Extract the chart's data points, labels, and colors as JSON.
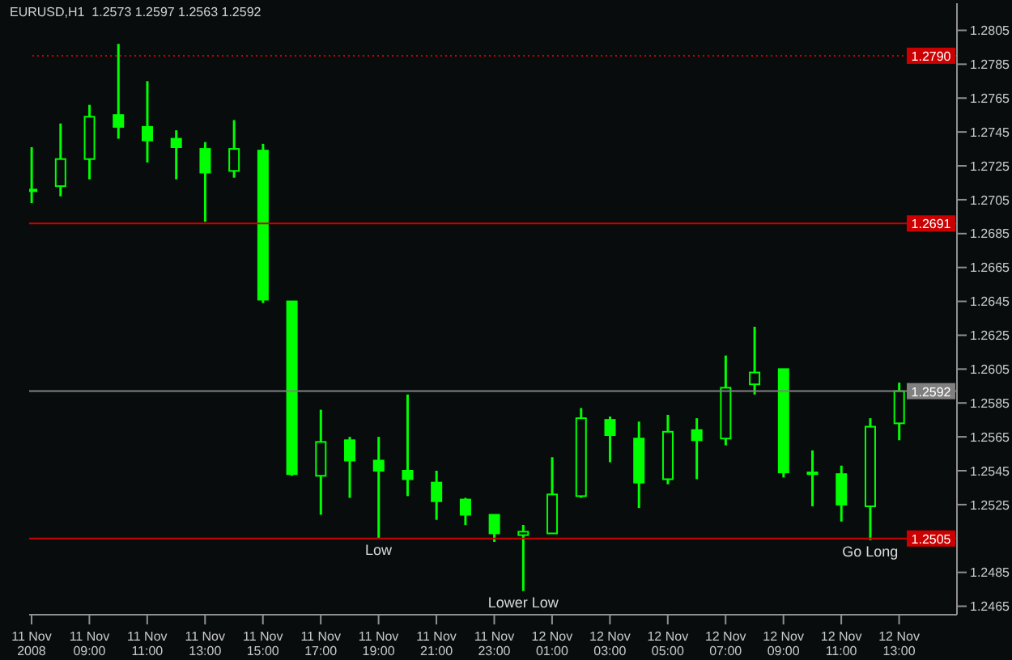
{
  "chart_data": {
    "type": "candlestick",
    "title": "EURUSD,H1  1.2573 1.2597 1.2563 1.2592",
    "x": [
      "2008-11-11T07:00",
      "2008-11-11T08:00",
      "2008-11-11T09:00",
      "2008-11-11T10:00",
      "2008-11-11T11:00",
      "2008-11-11T12:00",
      "2008-11-11T13:00",
      "2008-11-11T14:00",
      "2008-11-11T15:00",
      "2008-11-11T16:00",
      "2008-11-11T17:00",
      "2008-11-11T18:00",
      "2008-11-11T19:00",
      "2008-11-11T20:00",
      "2008-11-11T21:00",
      "2008-11-11T22:00",
      "2008-11-11T23:00",
      "2008-11-12T00:00",
      "2008-11-12T01:00",
      "2008-11-12T02:00",
      "2008-11-12T03:00",
      "2008-11-12T04:00",
      "2008-11-12T05:00",
      "2008-11-12T06:00",
      "2008-11-12T07:00",
      "2008-11-12T08:00",
      "2008-11-12T09:00",
      "2008-11-12T10:00",
      "2008-11-12T11:00",
      "2008-11-12T12:00",
      "2008-11-12T13:00"
    ],
    "ohlc": [
      [
        1.2711,
        1.2736,
        1.2703,
        1.2711
      ],
      [
        1.2713,
        1.275,
        1.2707,
        1.2729
      ],
      [
        1.2729,
        1.2761,
        1.2717,
        1.2754
      ],
      [
        1.2755,
        1.2797,
        1.2741,
        1.2748
      ],
      [
        1.2748,
        1.2775,
        1.2727,
        1.274
      ],
      [
        1.2741,
        1.2746,
        1.2717,
        1.2736
      ],
      [
        1.2735,
        1.2739,
        1.2692,
        1.2721
      ],
      [
        1.2722,
        1.2752,
        1.2718,
        1.2735
      ],
      [
        1.2734,
        1.2738,
        1.2644,
        1.2646
      ],
      [
        1.2645,
        1.2645,
        1.2542,
        1.2543
      ],
      [
        1.2542,
        1.2581,
        1.2519,
        1.2562
      ],
      [
        1.2563,
        1.2565,
        1.2529,
        1.2551
      ],
      [
        1.2551,
        1.2565,
        1.2505,
        1.2545
      ],
      [
        1.2545,
        1.259,
        1.253,
        1.254
      ],
      [
        1.2538,
        1.2545,
        1.2516,
        1.2527
      ],
      [
        1.2528,
        1.2529,
        1.2513,
        1.2519
      ],
      [
        1.2519,
        1.2519,
        1.2503,
        1.2508
      ],
      [
        1.2507,
        1.2513,
        1.2474,
        1.2509
      ],
      [
        1.2508,
        1.2553,
        1.2508,
        1.2531
      ],
      [
        1.253,
        1.2582,
        1.2529,
        1.2576
      ],
      [
        1.2575,
        1.2577,
        1.255,
        1.2566
      ],
      [
        1.2564,
        1.2574,
        1.2523,
        1.2538
      ],
      [
        1.254,
        1.2578,
        1.2537,
        1.2568
      ],
      [
        1.2569,
        1.2576,
        1.254,
        1.2563
      ],
      [
        1.2564,
        1.2613,
        1.256,
        1.2594
      ],
      [
        1.2596,
        1.263,
        1.259,
        1.2603
      ],
      [
        1.2605,
        1.2605,
        1.2541,
        1.2544
      ],
      [
        1.2544,
        1.2557,
        1.2524,
        1.2543
      ],
      [
        1.2543,
        1.2548,
        1.2515,
        1.2525
      ],
      [
        1.2524,
        1.2576,
        1.2504,
        1.2571
      ],
      [
        1.2573,
        1.2597,
        1.2563,
        1.2592
      ]
    ],
    "color": "#00ff00",
    "xlim": [
      "2008-11-11T06:55",
      "2008-11-12T15:00"
    ],
    "xticks": [
      {
        "value": "2008-11-11T07:00",
        "label": "11 Nov 2008"
      },
      {
        "value": "2008-11-11T09:00",
        "label": "11 Nov 09:00"
      },
      {
        "value": "2008-11-11T11:00",
        "label": "11 Nov 11:00"
      },
      {
        "value": "2008-11-11T13:00",
        "label": "11 Nov 13:00"
      },
      {
        "value": "2008-11-11T15:00",
        "label": "11 Nov 15:00"
      },
      {
        "value": "2008-11-11T17:00",
        "label": "11 Nov 17:00"
      },
      {
        "value": "2008-11-11T19:00",
        "label": "11 Nov 19:00"
      },
      {
        "value": "2008-11-11T21:00",
        "label": "11 Nov 21:00"
      },
      {
        "value": "2008-11-11T23:00",
        "label": "11 Nov 23:00"
      },
      {
        "value": "2008-11-12T01:00",
        "label": "12 Nov 01:00"
      },
      {
        "value": "2008-11-12T03:00",
        "label": "12 Nov 03:00"
      },
      {
        "value": "2008-11-12T05:00",
        "label": "12 Nov 05:00"
      },
      {
        "value": "2008-11-12T07:00",
        "label": "12 Nov 07:00"
      },
      {
        "value": "2008-11-12T09:00",
        "label": "12 Nov 09:00"
      },
      {
        "value": "2008-11-12T11:00",
        "label": "12 Nov 11:00"
      },
      {
        "value": "2008-11-12T13:00",
        "label": "12 Nov 13:00"
      }
    ],
    "ylim": [
      1.246,
      1.2821
    ],
    "yticks": [
      1.2805,
      1.2785,
      1.2765,
      1.2745,
      1.2725,
      1.2705,
      1.2685,
      1.2665,
      1.2645,
      1.2625,
      1.2605,
      1.2585,
      1.2565,
      1.2545,
      1.2525,
      1.2485,
      1.2465
    ],
    "ref_lines": [
      {
        "axis": "y",
        "value": 1.279,
        "label": "1.2790",
        "color": "#cc0000",
        "line_style": "dotted"
      },
      {
        "axis": "y",
        "value": 1.2691,
        "label": "1.2691",
        "color": "#cc0000",
        "line_style": "solid"
      },
      {
        "axis": "y",
        "value": 1.2505,
        "label": "1.2505",
        "color": "#cc0000",
        "line_style": "solid"
      },
      {
        "axis": "y",
        "value": 1.2592,
        "label": "1.2592",
        "color": "#808080",
        "line_style": "solid"
      }
    ],
    "annotations": [
      {
        "text": "Low",
        "x": "2008-11-11T19:00",
        "y": 1.2505
      },
      {
        "text": "Lower Low",
        "x": "2008-11-12T00:00",
        "y": 1.2474
      },
      {
        "text": "Go Long",
        "x": "2008-11-12T12:00",
        "y": 1.2504
      }
    ]
  }
}
